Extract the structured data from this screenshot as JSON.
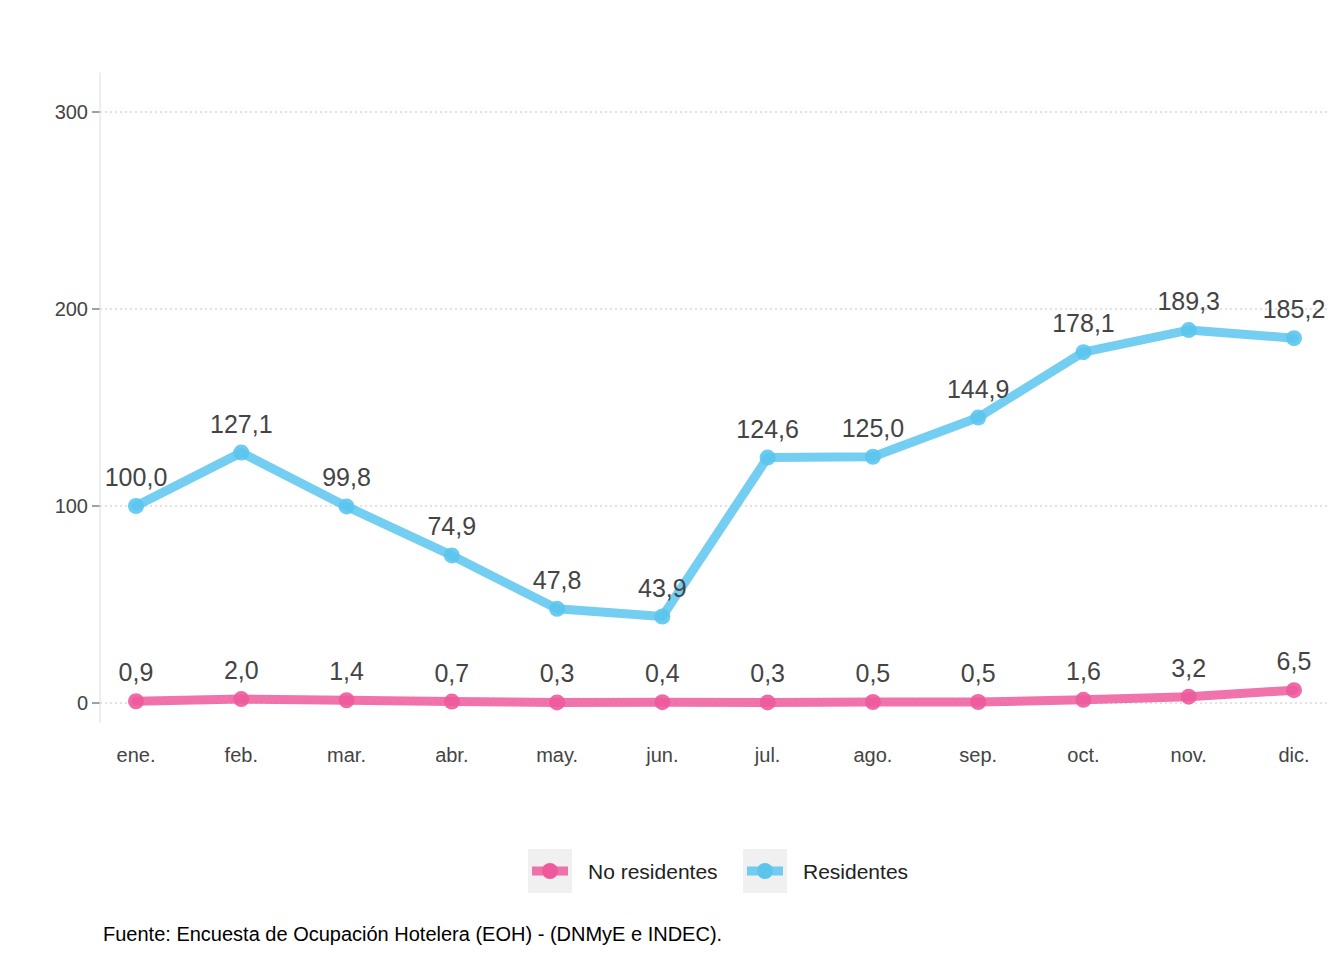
{
  "chart_data": {
    "type": "line",
    "caption": "Fuente: Encuesta de Ocupación Hotelera (EOH) - (DNMyE e INDEC).",
    "categories": [
      "ene.",
      "feb.",
      "mar.",
      "abr.",
      "may.",
      "jun.",
      "jul.",
      "ago.",
      "sep.",
      "oct.",
      "nov.",
      "dic."
    ],
    "series": [
      {
        "name": "No residentes",
        "color": "#ee5a9c",
        "values": [
          0.9,
          2.0,
          1.4,
          0.7,
          0.3,
          0.4,
          0.3,
          0.5,
          0.5,
          1.6,
          3.2,
          6.5
        ],
        "value_labels": [
          "0,9",
          "2,0",
          "1,4",
          "0,7",
          "0,3",
          "0,4",
          "0,3",
          "0,5",
          "0,5",
          "1,6",
          "3,2",
          "6,5"
        ]
      },
      {
        "name": "Residentes",
        "color": "#5bc5ee",
        "values": [
          100.0,
          127.1,
          99.8,
          74.9,
          47.8,
          43.9,
          124.6,
          125.0,
          144.9,
          178.1,
          189.3,
          185.2
        ],
        "value_labels": [
          "100,0",
          "127,1",
          "99,8",
          "74,9",
          "47,8",
          "43,9",
          "124,6",
          "125,0",
          "144,9",
          "178,1",
          "189,3",
          "185,2"
        ]
      }
    ],
    "ylim": [
      -10,
      320
    ],
    "yticks": [
      0,
      100,
      200,
      300
    ],
    "grid": true,
    "legend": "bottom",
    "data_labels": true,
    "marker": "circle",
    "line_style": "solid"
  }
}
